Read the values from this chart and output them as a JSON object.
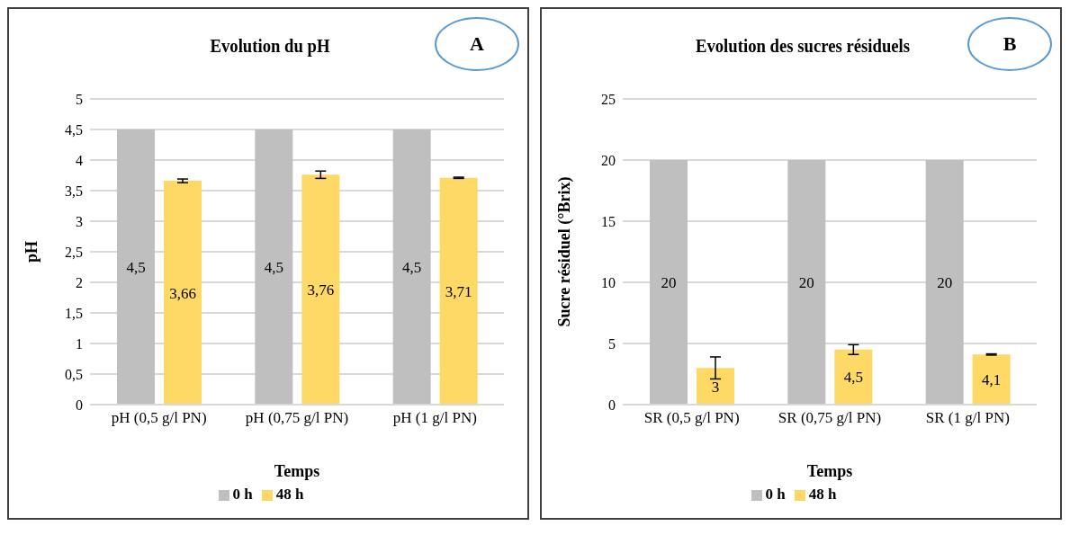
{
  "chart_data": [
    {
      "type": "bar",
      "title": "Evolution du pH",
      "xlabel": "Temps",
      "ylabel": "pH",
      "annotations": [
        "A"
      ],
      "categories": [
        "pH (0,5 g/l  PN)",
        "pH (0,75 g/l  PN)",
        "pH (1 g/l  PN)"
      ],
      "series": [
        {
          "name": "0 h",
          "color": "#bfbfbf",
          "values": [
            4.5,
            4.5,
            4.5
          ],
          "errors": [
            0,
            0,
            0
          ],
          "value_labels": [
            "4,5",
            "4,5",
            "4,5"
          ]
        },
        {
          "name": "48 h",
          "color": "#ffd966",
          "values": [
            3.66,
            3.76,
            3.71
          ],
          "errors": [
            0.03,
            0.06,
            0.01
          ],
          "value_labels": [
            "3,66",
            "3,76",
            "3,71"
          ]
        }
      ],
      "ylim": [
        0,
        5
      ],
      "yticks": [
        0,
        {
          "value": 0.5,
          "label": "0,5"
        },
        1,
        {
          "value": 1.5,
          "label": "1,5"
        },
        2,
        {
          "value": 2.5,
          "label": "2,5"
        },
        3,
        {
          "value": 3.5,
          "label": "3,5"
        },
        4,
        {
          "value": 4.5,
          "label": "4,5"
        },
        5
      ],
      "grid": "y",
      "legend": "bottom"
    },
    {
      "type": "bar",
      "title": "Evolution des sucres résiduels",
      "xlabel": "Temps",
      "ylabel": "Sucre résiduel (°Brix)",
      "annotations": [
        "B"
      ],
      "categories": [
        "SR (0,5 g/l PN)",
        "SR (0,75 g/l PN)",
        "SR (1 g/l PN)"
      ],
      "series": [
        {
          "name": "0 h",
          "color": "#bfbfbf",
          "values": [
            20,
            20,
            20
          ],
          "errors": [
            0,
            0,
            0
          ],
          "value_labels": [
            "20",
            "20",
            "20"
          ]
        },
        {
          "name": "48 h",
          "color": "#ffd966",
          "values": [
            3,
            4.5,
            4.1
          ],
          "errors": [
            0.9,
            0.4,
            0.05
          ],
          "value_labels": [
            "3",
            "4,5",
            "4,1"
          ]
        }
      ],
      "ylim": [
        0,
        25
      ],
      "yticks": [
        0,
        5,
        10,
        15,
        20,
        25
      ],
      "grid": "y",
      "legend": "bottom"
    }
  ]
}
